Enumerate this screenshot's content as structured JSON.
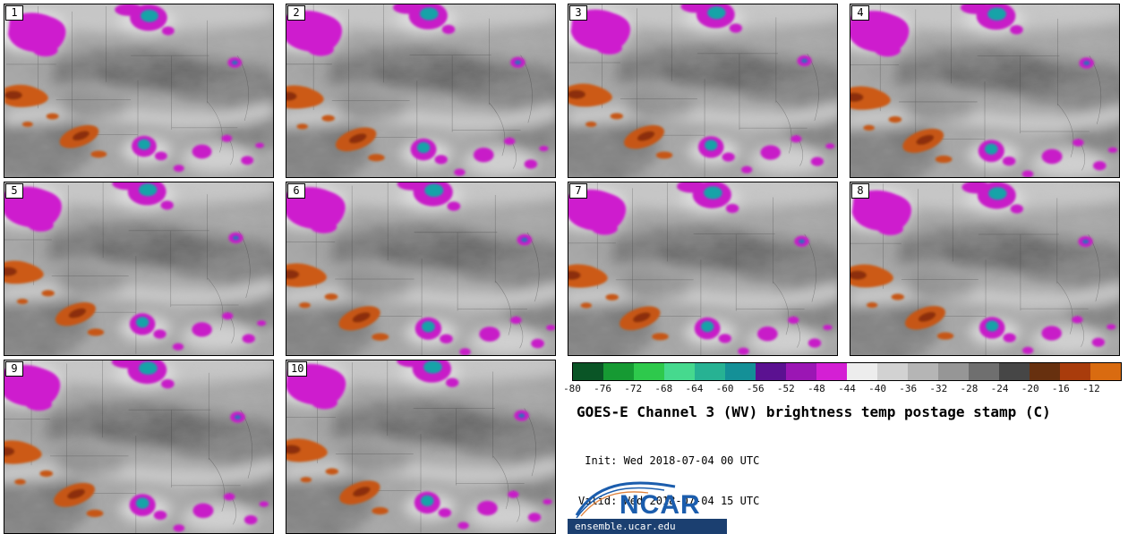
{
  "title": "GOES-E Channel 3 (WV) brightness temp postage stamp (C)",
  "init_line": " Init: Wed 2018-07-04 00 UTC",
  "valid_line": "Valid: Wed 2018-07-04 15 UTC",
  "panels": [
    {
      "label": "1"
    },
    {
      "label": "2"
    },
    {
      "label": "3"
    },
    {
      "label": "4"
    },
    {
      "label": "5"
    },
    {
      "label": "6"
    },
    {
      "label": "7"
    },
    {
      "label": "8"
    },
    {
      "label": "9"
    },
    {
      "label": "10"
    }
  ],
  "colorbar": {
    "ticks": [
      "-80",
      "-76",
      "-72",
      "-68",
      "-64",
      "-60",
      "-56",
      "-52",
      "-48",
      "-44",
      "-40",
      "-36",
      "-32",
      "-28",
      "-24",
      "-20",
      "-16",
      "-12"
    ],
    "colors": [
      "#0a5526",
      "#169a33",
      "#2ec94c",
      "#46d98e",
      "#27b293",
      "#149097",
      "#5b1191",
      "#9b16b4",
      "#d41fd4",
      "#ededed",
      "#d2d2d2",
      "#b5b5b5",
      "#969696",
      "#6f6f6f",
      "#464646",
      "#67300f",
      "#a93c0c",
      "#d96b10"
    ]
  },
  "logo": {
    "text": "NCAR",
    "site": "ensemble.ucar.edu",
    "color": "#1b5dad",
    "banner_color": "#1b3f70"
  }
}
